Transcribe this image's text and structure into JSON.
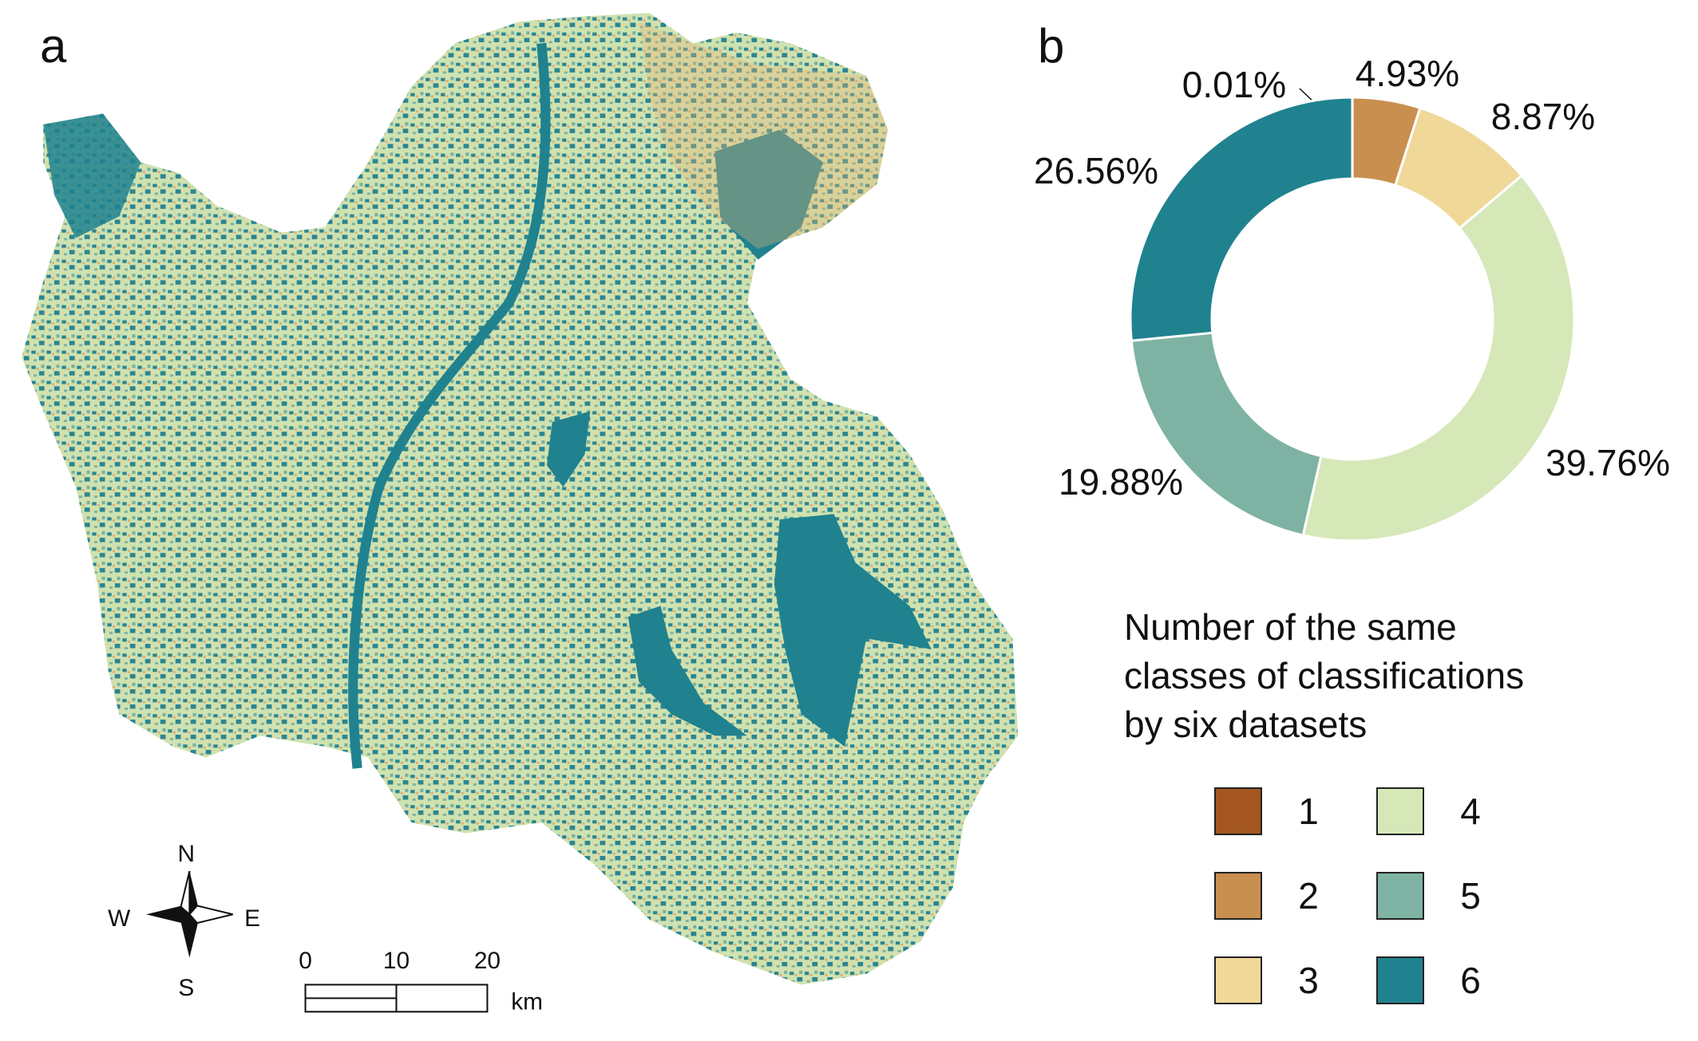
{
  "map": {
    "panel_label": "a",
    "compass": {
      "north": "N",
      "south": "S",
      "west": "W",
      "east": "E"
    },
    "scale_labels": [
      "0",
      "10",
      "20"
    ],
    "scale_unit": "km"
  },
  "chart_data": {
    "type": "pie",
    "panel_label": "b",
    "donut": true,
    "categories": [
      "1",
      "2",
      "3",
      "4",
      "5",
      "6"
    ],
    "values": [
      0.01,
      4.93,
      8.87,
      39.76,
      19.88,
      26.56
    ],
    "value_labels": [
      "0.01%",
      "4.93%",
      "8.87%",
      "39.76%",
      "19.88%",
      "26.56%"
    ],
    "colors": [
      "#a3561f",
      "#c98f4f",
      "#f0d898",
      "#d6e8b8",
      "#7eb3a4",
      "#20828f"
    ],
    "legend_title": [
      "Number of the same",
      "classes of classifications",
      "by six datasets"
    ]
  }
}
